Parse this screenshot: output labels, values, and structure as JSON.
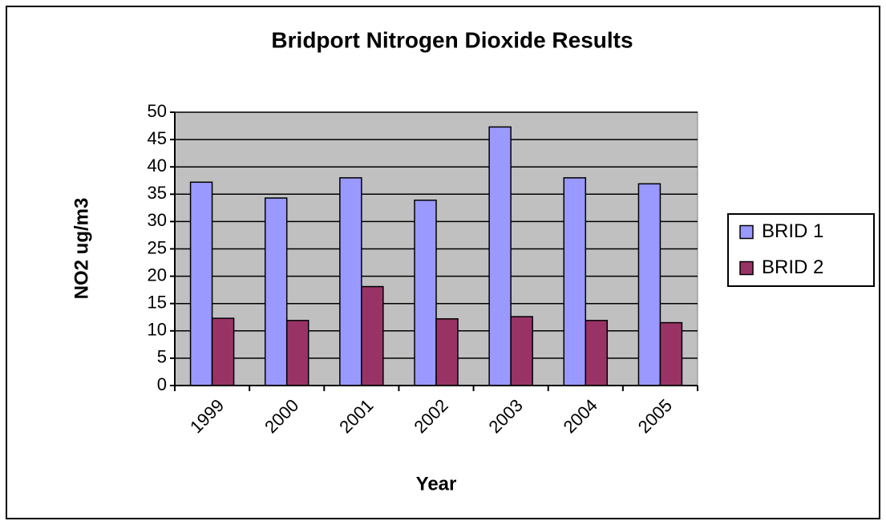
{
  "chart_data": {
    "type": "bar",
    "title": "Bridport Nitrogen Dioxide Results",
    "x_label": "Year",
    "y_label": "NO2 ug/m3",
    "categories": [
      "1999",
      "2000",
      "2001",
      "2002",
      "2003",
      "2004",
      "2005"
    ],
    "series": [
      {
        "name": "BRID 1",
        "color": "#9999ff",
        "values": [
          37.2,
          34.3,
          38.0,
          33.9,
          47.3,
          38.0,
          36.9
        ]
      },
      {
        "name": "BRID 2",
        "color": "#993366",
        "values": [
          12.3,
          11.9,
          18.1,
          12.2,
          12.6,
          11.9,
          11.5
        ]
      }
    ],
    "ylim": [
      0,
      50
    ],
    "yticks": [
      0,
      5,
      10,
      15,
      20,
      25,
      30,
      35,
      40,
      45,
      50
    ],
    "grid": true,
    "legend": "right",
    "plot_background": "#c0c0c0"
  }
}
